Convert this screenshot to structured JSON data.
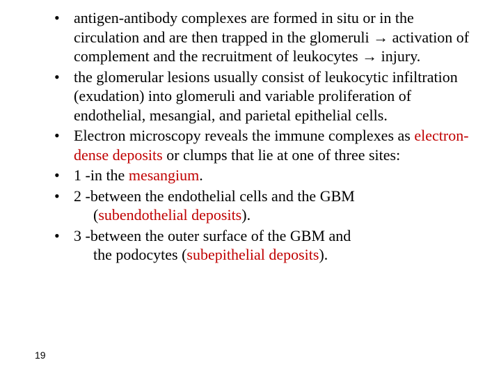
{
  "colors": {
    "text": "#000000",
    "highlight": "#c00000",
    "background": "#ffffff"
  },
  "typography": {
    "body_font": "Times New Roman",
    "body_size_pt": 22,
    "pagenum_font": "Arial",
    "pagenum_size_pt": 14
  },
  "bullets": [
    {
      "segments": [
        {
          "t": "antigen-antibody complexes are formed in situ or in the circulation and are then trapped in the glomeruli → activation of complement and the recruitment of leukocytes → injury."
        }
      ]
    },
    {
      "segments": [
        {
          "t": "the glomerular lesions usually consist of leukocytic infiltration (exudation) into glomeruli and variable proliferation of endothelial, mesangial, and parietal epithelial cells."
        }
      ]
    },
    {
      "segments": [
        {
          "t": "Electron microscopy reveals the immune complexes as "
        },
        {
          "t": "electron-dense deposits ",
          "red": true
        },
        {
          "t": "or clumps that lie at one of three sites:"
        }
      ]
    },
    {
      "segments": [
        {
          "t": "1 -in the "
        },
        {
          "t": "mesangium",
          "red": true
        },
        {
          "t": "."
        }
      ]
    },
    {
      "segments": [
        {
          "t": "2 -between the endothelial cells and the GBM"
        }
      ],
      "continuation": [
        {
          "t": "("
        },
        {
          "t": "subendothelial deposits",
          "red": true
        },
        {
          "t": ")."
        }
      ]
    },
    {
      "segments": [
        {
          "t": "3 -between the outer surface of the GBM and"
        }
      ],
      "continuation": [
        {
          "t": "the podocytes ("
        },
        {
          "t": "subepithelial deposits",
          "red": true
        },
        {
          "t": ")."
        }
      ]
    }
  ],
  "page_number": "19"
}
